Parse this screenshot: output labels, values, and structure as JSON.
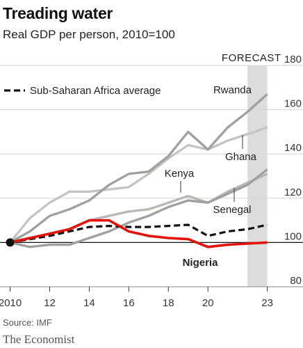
{
  "title": "Treading water",
  "subtitle": "Real GDP per person, 2010=100",
  "source": "Source: IMF",
  "brand": "The Economist",
  "forecast_label": "FORECAST",
  "chart_data": {
    "type": "line",
    "title": "Treading water",
    "subtitle": "Real GDP per person, 2010=100",
    "xlabel": "",
    "ylabel": "",
    "xlim": [
      2009.7,
      2023.4
    ],
    "ylim": [
      80,
      180
    ],
    "x_ticks": [
      "2010",
      "12",
      "14",
      "16",
      "18",
      "20",
      "23"
    ],
    "x_tick_values": [
      2010,
      2012,
      2014,
      2016,
      2018,
      2020,
      2023
    ],
    "y_ticks": [
      80,
      100,
      120,
      140,
      160,
      180
    ],
    "y_axis_side": "right",
    "grid": "horizontal",
    "forecast_range": [
      2022,
      2023
    ],
    "legend": {
      "position": "top-left",
      "entries": [
        "Sub-Saharan Africa average"
      ]
    },
    "series": [
      {
        "name": "Rwanda",
        "color": "#a0a09c",
        "x": [
          2010,
          2011,
          2012,
          2013,
          2014,
          2015,
          2016,
          2017,
          2018,
          2019,
          2020,
          2021,
          2022,
          2023
        ],
        "y": [
          100,
          105,
          112,
          115,
          119,
          126,
          131,
          132,
          139,
          150,
          142,
          152,
          159,
          167
        ]
      },
      {
        "name": "Ghana",
        "color": "#c4c4c0",
        "x": [
          2010,
          2011,
          2012,
          2013,
          2014,
          2015,
          2016,
          2017,
          2018,
          2019,
          2020,
          2021,
          2022,
          2023
        ],
        "y": [
          100,
          111,
          118,
          123,
          123,
          124,
          125,
          131,
          138,
          144,
          142,
          146,
          149,
          152
        ]
      },
      {
        "name": "Kenya",
        "color": "#b8b8b4",
        "x": [
          2010,
          2011,
          2012,
          2013,
          2014,
          2015,
          2016,
          2017,
          2018,
          2019,
          2020,
          2021,
          2022,
          2023
        ],
        "y": [
          100,
          102,
          104,
          106,
          110,
          112,
          114,
          115,
          118,
          121,
          118,
          123,
          127,
          131
        ]
      },
      {
        "name": "Senegal",
        "color": "#a0a09c",
        "x": [
          2010,
          2011,
          2012,
          2013,
          2014,
          2015,
          2016,
          2017,
          2018,
          2019,
          2020,
          2021,
          2022,
          2023
        ],
        "y": [
          100,
          98,
          99,
          99,
          102,
          105,
          109,
          112,
          116,
          119,
          118,
          122,
          126,
          133
        ]
      },
      {
        "name": "Sub-Saharan Africa average",
        "color": "#111111",
        "style": "dashed",
        "x": [
          2010,
          2011,
          2012,
          2013,
          2014,
          2015,
          2016,
          2017,
          2018,
          2019,
          2020,
          2021,
          2022,
          2023
        ],
        "y": [
          100,
          101.5,
          103,
          105,
          107,
          107.5,
          107,
          107,
          107.5,
          108,
          103,
          105,
          106,
          108
        ]
      },
      {
        "name": "Nigeria",
        "color": "#e3120b",
        "x": [
          2010,
          2011,
          2012,
          2013,
          2014,
          2015,
          2016,
          2017,
          2018,
          2019,
          2020,
          2021,
          2022,
          2023
        ],
        "y": [
          100,
          102,
          104,
          106,
          110,
          110,
          105,
          103,
          102,
          101.5,
          98,
          99,
          99.5,
          100
        ]
      }
    ],
    "labels": [
      "Rwanda",
      "Ghana",
      "Kenya",
      "Senegal",
      "Nigeria"
    ]
  }
}
